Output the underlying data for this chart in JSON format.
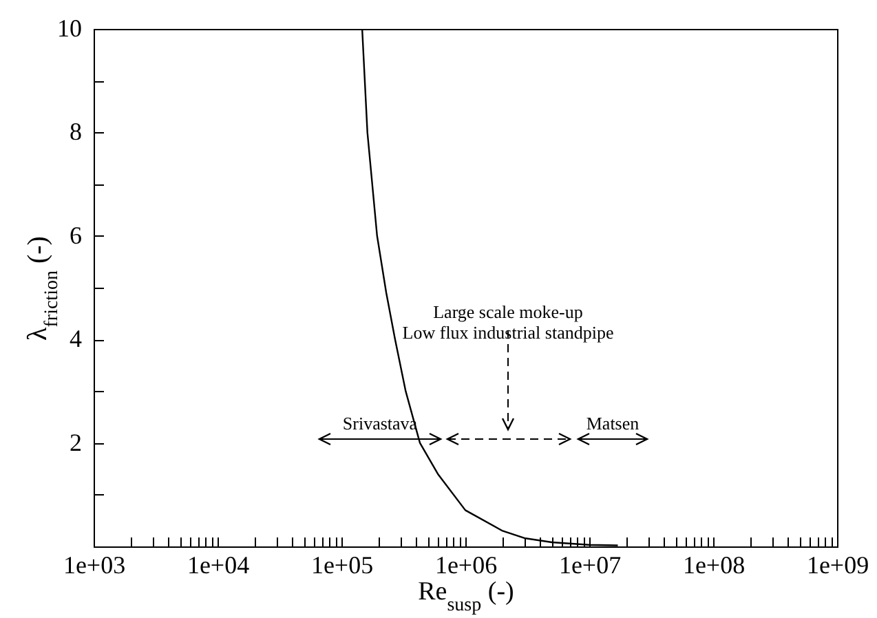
{
  "chart_data": {
    "type": "line",
    "xlabel": "Re$_{susp}$ (-)",
    "ylabel": "λ$_{friction}$ (-)",
    "log": "x",
    "xlim": [
      1000,
      1000000000
    ],
    "ylim": [
      0,
      10
    ],
    "xticks": [
      {
        "value": 1000,
        "label": "1e+03"
      },
      {
        "value": 2000,
        "label": null
      },
      {
        "value": 3000,
        "label": null
      },
      {
        "value": 4000,
        "label": null
      },
      {
        "value": 5000,
        "label": null
      },
      {
        "value": 6000,
        "label": null
      },
      {
        "value": 7000,
        "label": null
      },
      {
        "value": 8000,
        "label": null
      },
      {
        "value": 9000,
        "label": null
      },
      {
        "value": 10000,
        "label": "1e+04"
      },
      {
        "value": 20000,
        "label": null
      },
      {
        "value": 30000,
        "label": null
      },
      {
        "value": 40000,
        "label": null
      },
      {
        "value": 50000,
        "label": null
      },
      {
        "value": 60000,
        "label": null
      },
      {
        "value": 70000,
        "label": null
      },
      {
        "value": 80000,
        "label": null
      },
      {
        "value": 90000,
        "label": null
      },
      {
        "value": 100000,
        "label": "1e+05"
      },
      {
        "value": 200000,
        "label": null
      },
      {
        "value": 300000,
        "label": null
      },
      {
        "value": 400000,
        "label": null
      },
      {
        "value": 500000,
        "label": null
      },
      {
        "value": 600000,
        "label": null
      },
      {
        "value": 700000,
        "label": null
      },
      {
        "value": 800000,
        "label": null
      },
      {
        "value": 900000,
        "label": null
      },
      {
        "value": 1000000,
        "label": "1e+06"
      },
      {
        "value": 2000000,
        "label": null
      },
      {
        "value": 3000000,
        "label": null
      },
      {
        "value": 4000000,
        "label": null
      },
      {
        "value": 5000000,
        "label": null
      },
      {
        "value": 6000000,
        "label": null
      },
      {
        "value": 7000000,
        "label": null
      },
      {
        "value": 8000000,
        "label": null
      },
      {
        "value": 9000000,
        "label": null
      },
      {
        "value": 10000000,
        "label": "1e+07"
      },
      {
        "value": 20000000,
        "label": null
      },
      {
        "value": 30000000,
        "label": null
      },
      {
        "value": 40000000,
        "label": null
      },
      {
        "value": 50000000,
        "label": null
      },
      {
        "value": 60000000,
        "label": null
      },
      {
        "value": 70000000,
        "label": null
      },
      {
        "value": 80000000,
        "label": null
      },
      {
        "value": 90000000,
        "label": null
      },
      {
        "value": 100000000,
        "label": "1e+08"
      },
      {
        "value": 200000000,
        "label": null
      },
      {
        "value": 300000000,
        "label": null
      },
      {
        "value": 400000000,
        "label": null
      },
      {
        "value": 500000000,
        "label": null
      },
      {
        "value": 600000000,
        "label": null
      },
      {
        "value": 700000000,
        "label": null
      },
      {
        "value": 800000000,
        "label": null
      },
      {
        "value": 900000000,
        "label": null
      },
      {
        "value": 1000000000,
        "label": "1e+09"
      }
    ],
    "yticks": [
      {
        "value": 1,
        "label": null
      },
      2,
      {
        "value": 3,
        "label": null
      },
      4,
      {
        "value": 5,
        "label": null
      },
      6,
      {
        "value": 7,
        "label": null
      },
      8,
      {
        "value": 9,
        "label": null
      },
      10
    ],
    "grid": false,
    "series": [
      {
        "color": "#000000",
        "x": [
          147000,
          162000,
          194000,
          230000,
          271000,
          330000,
          430000,
          600000,
          1000000,
          2000000,
          3000000,
          5000000,
          10000000,
          17000000
        ],
        "values": [
          10,
          8,
          6,
          4.9,
          4,
          3,
          2,
          1.4,
          0.7,
          0.3,
          0.16,
          0.08,
          0.03,
          0.02
        ]
      }
    ],
    "annotations": [
      "Large scale moke-up\nLow flux industrial standpipe",
      "Srivastava",
      "Matsen"
    ]
  }
}
